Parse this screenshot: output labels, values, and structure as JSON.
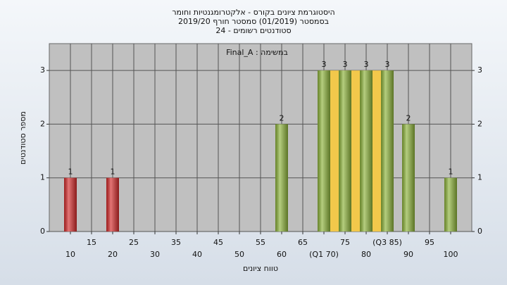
{
  "chart_data": {
    "type": "bar",
    "title": "היסטוגרמת ציונים בקורס - אלקטרומגנטיות וחומר",
    "subtitle": [
      "בסמסטר (01/2019) סמסטר חורף 2019/20",
      "סטודנטים רשומים - 24"
    ],
    "annotation": "במשימה : Final_A",
    "x_label": "טווח ציונים",
    "y_label": "מספר סטודנטים",
    "x": [
      10,
      20,
      60,
      70,
      75,
      80,
      85,
      90,
      100
    ],
    "values": [
      1,
      1,
      2,
      3,
      3,
      3,
      3,
      2,
      1
    ],
    "colors": [
      "#d42a2a",
      "#d42a2a",
      "#8db33a",
      "#8db33a",
      "#8db33a",
      "#8db33a",
      "#8db33a",
      "#8db33a",
      "#8db33a"
    ],
    "highlight": {
      "x": [
        70,
        85
      ],
      "height": 3,
      "color": "#f2c84b"
    },
    "xlim": [
      5,
      105
    ],
    "xticks": [
      10,
      15,
      20,
      25,
      30,
      35,
      40,
      45,
      50,
      55,
      60,
      65,
      {
        "value": 70,
        "label": "(Q1 70)"
      },
      75,
      80,
      {
        "value": 85,
        "label": "(Q3 85)"
      },
      90,
      95,
      100
    ],
    "ylim": [
      0,
      3.5
    ],
    "yticks": [
      0,
      1,
      2,
      3
    ],
    "right_axis": true,
    "grid": true
  }
}
